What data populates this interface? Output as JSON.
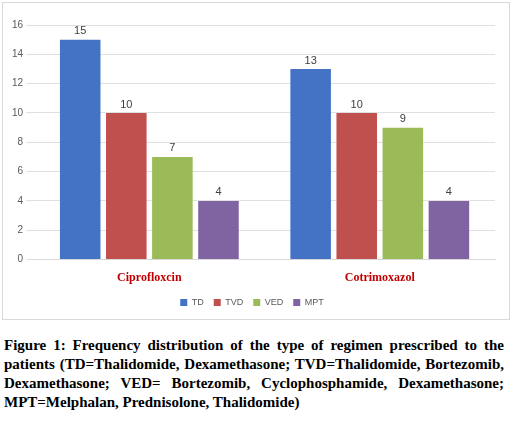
{
  "chart_data": {
    "type": "bar",
    "caption": "Figure 1: Frequency distribution of the type of regimen prescribed to the patients (TD=Thalidomide, Dexamethasone; TVD=Thalidomide, Bortezomib, Dexamethasone; VED= Bortezomib, Cyclophosphamide, Dexamethasone; MPT=Melphalan, Prednisolone, Thalidomide)",
    "categories": [
      "Ciprofloxcin",
      "Cotrimoxazol"
    ],
    "series": [
      {
        "name": "TD",
        "color": "#4472c4",
        "values": [
          15,
          13
        ]
      },
      {
        "name": "TVD",
        "color": "#c0504d",
        "values": [
          10,
          10
        ]
      },
      {
        "name": "VED",
        "color": "#9bbb59",
        "values": [
          7,
          9
        ]
      },
      {
        "name": "MPT",
        "color": "#8064a2",
        "values": [
          4,
          4
        ]
      }
    ],
    "ylim": [
      0,
      16
    ],
    "yticks": [
      0,
      2,
      4,
      6,
      8,
      10,
      12,
      14,
      16
    ],
    "grid": true,
    "legend": "bottom",
    "data_labels": true
  }
}
